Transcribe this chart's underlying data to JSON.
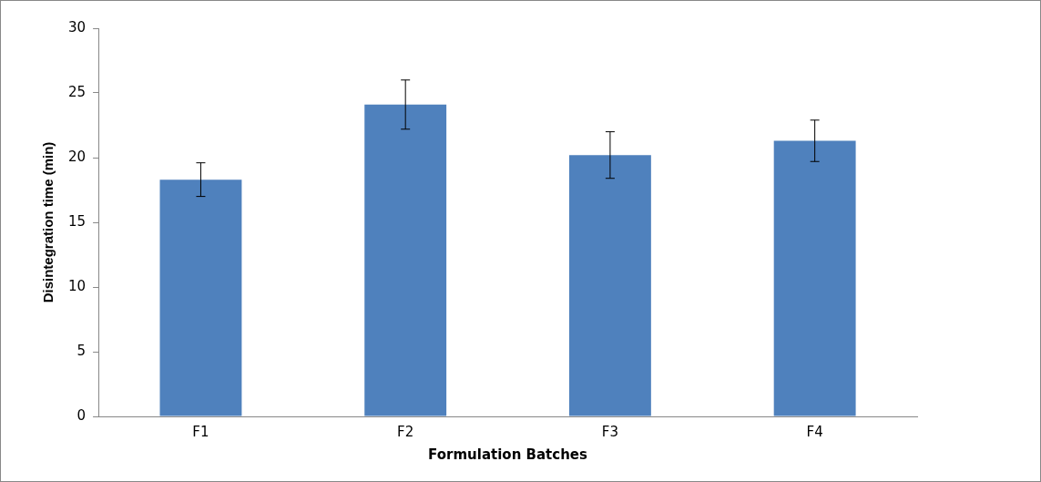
{
  "chart_data": {
    "type": "bar",
    "xlabel": "Formulation Batches",
    "ylabel": "Disintegration time (min)",
    "categories": [
      "F1",
      "F2",
      "F3",
      "F4"
    ],
    "values": [
      18.3,
      24.1,
      20.2,
      21.3
    ],
    "errors": [
      1.3,
      1.9,
      1.8,
      1.6
    ],
    "color": "#4f81bd",
    "ylim": [
      0,
      30
    ],
    "yticks": [
      0,
      5,
      10,
      15,
      20,
      25,
      30
    ],
    "grid": false,
    "legend": false
  }
}
